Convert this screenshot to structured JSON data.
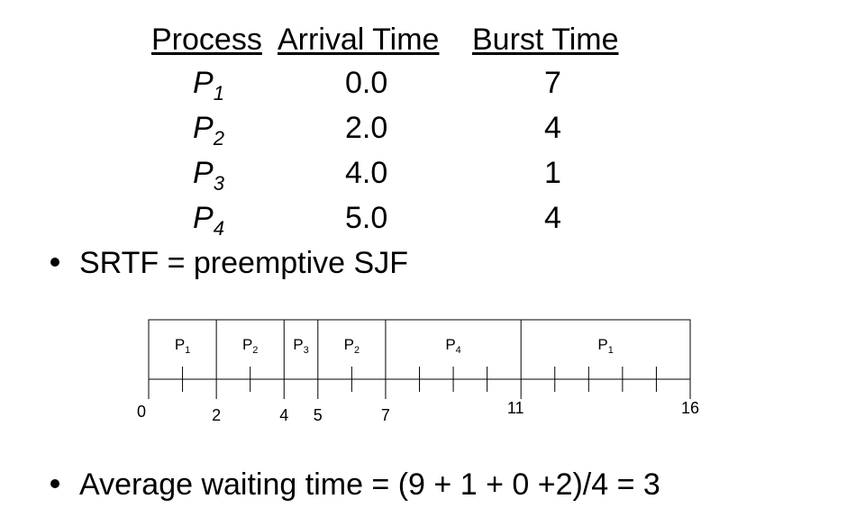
{
  "table": {
    "headers": {
      "process": "Process",
      "arrival": "Arrival Time",
      "burst": "Burst Time"
    },
    "rows": [
      {
        "name": "P",
        "sub": "1",
        "arrival": "0.0",
        "burst": "7"
      },
      {
        "name": "P",
        "sub": "2",
        "arrival": "2.0",
        "burst": "4"
      },
      {
        "name": "P",
        "sub": "3",
        "arrival": "4.0",
        "burst": "1"
      },
      {
        "name": "P",
        "sub": "4",
        "arrival": "5.0",
        "burst": "4"
      }
    ]
  },
  "bullets": {
    "srtf": "SRTF = preemptive SJF",
    "avg": "Average waiting time = (9 + 1 + 0 +2)/4 = 3"
  },
  "gantt": {
    "start": 0,
    "end": 16,
    "boundaries": [
      0,
      2,
      4,
      5,
      7,
      11,
      16
    ],
    "axis_labels": [
      "0",
      "2",
      "4",
      "5",
      "7",
      "11",
      "16"
    ],
    "segments": [
      {
        "name": "P",
        "sub": "1",
        "start": 0,
        "end": 2
      },
      {
        "name": "P",
        "sub": "2",
        "start": 2,
        "end": 4
      },
      {
        "name": "P",
        "sub": "3",
        "start": 4,
        "end": 5
      },
      {
        "name": "P",
        "sub": "2",
        "start": 5,
        "end": 7
      },
      {
        "name": "P",
        "sub": "4",
        "start": 7,
        "end": 11
      },
      {
        "name": "P",
        "sub": "1",
        "start": 11,
        "end": 16
      }
    ]
  }
}
